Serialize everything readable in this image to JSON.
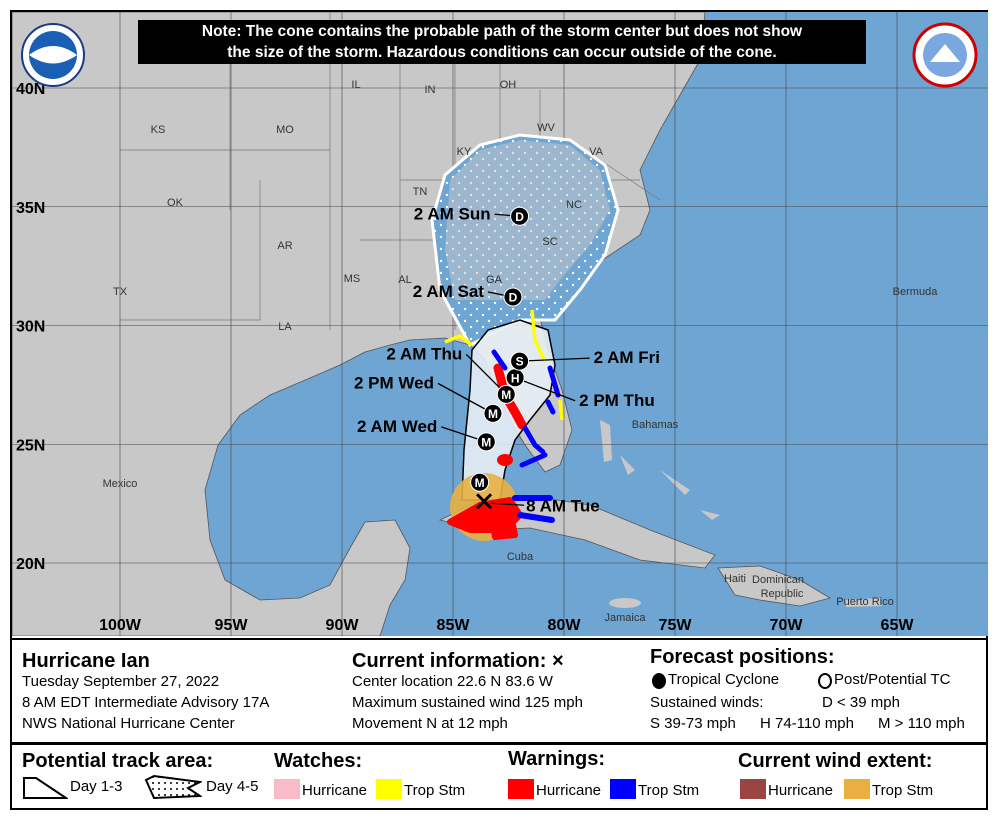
{
  "note": [
    "Note: The cone contains the probable path of the storm center but does not show",
    "the size of the storm. Hazardous conditions can occur outside of the cone."
  ],
  "logos": {
    "left": "NOAA",
    "right": "NATIONAL WEATHER SERVICE"
  },
  "map": {
    "lon_labels": [
      "100W",
      "95W",
      "90W",
      "85W",
      "80W",
      "75W",
      "70W",
      "65W"
    ],
    "lat_labels": [
      "40N",
      "35N",
      "30N",
      "25N",
      "20N"
    ],
    "place_labels": [
      "KS",
      "MO",
      "IL",
      "IN",
      "OH",
      "WV",
      "VA",
      "KY",
      "TN",
      "NC",
      "SC",
      "OK",
      "AR",
      "MS",
      "AL",
      "GA",
      "TX",
      "LA",
      "Mexico",
      "Bermuda",
      "Bahamas",
      "Cuba",
      "Haiti",
      "Dominican",
      "Republic",
      "Jamaica",
      "Puerto Rico"
    ],
    "current_center": {
      "lat": 22.6,
      "lon": -83.6,
      "label": "8 AM Tue"
    },
    "forecast_points": [
      {
        "lat": 23.4,
        "lon": -83.8,
        "intensity": "M",
        "label": ""
      },
      {
        "lat": 25.1,
        "lon": -83.5,
        "intensity": "M",
        "label": "2 AM Wed"
      },
      {
        "lat": 26.3,
        "lon": -83.2,
        "intensity": "M",
        "label": "2 PM Wed"
      },
      {
        "lat": 27.1,
        "lon": -82.6,
        "intensity": "M",
        "label": "2 AM Thu"
      },
      {
        "lat": 27.8,
        "lon": -82.2,
        "intensity": "H",
        "label": "2 PM Thu"
      },
      {
        "lat": 28.5,
        "lon": -82.0,
        "intensity": "S",
        "label": "2 AM Fri"
      },
      {
        "lat": 31.2,
        "lon": -82.3,
        "intensity": "D",
        "label": "2 AM Sat"
      },
      {
        "lat": 34.6,
        "lon": -82.0,
        "intensity": "D",
        "label": "2 AM Sun"
      }
    ],
    "colors": {
      "ocean": "#6ea5d2",
      "land": "#c8c8c8",
      "hurricane_warning": "#ff0000",
      "ts_warning": "#0000ff",
      "ts_watch": "#ffff00",
      "hurricane_watch": "#ffc0cb",
      "wind_hurricane": "#9b4444",
      "wind_ts": "#e8b040"
    }
  },
  "storm": {
    "name": "Hurricane Ian",
    "date": "Tuesday September 27, 2022",
    "advisory": "8 AM EDT Intermediate Advisory 17A",
    "center": "NWS National Hurricane Center"
  },
  "current": {
    "title": "Current information: ×",
    "location": "Center location 22.6 N 83.6 W",
    "wind": "Maximum sustained wind 125 mph",
    "movement": "Movement N at 12 mph"
  },
  "forecast": {
    "title": "Forecast positions:",
    "tc": "Tropical Cyclone",
    "ptc": "Post/Potential TC",
    "sustained": "Sustained winds:",
    "d": "D < 39 mph",
    "s": "S 39-73 mph",
    "h": "H 74-110 mph",
    "m": "M > 110 mph"
  },
  "legend": {
    "track_title": "Potential track area:",
    "day13": "Day 1-3",
    "day45": "Day 4-5",
    "watches_title": "Watches:",
    "warnings_title": "Warnings:",
    "wind_title": "Current wind extent:",
    "hurricane": "Hurricane",
    "tropstm": "Trop Stm"
  }
}
